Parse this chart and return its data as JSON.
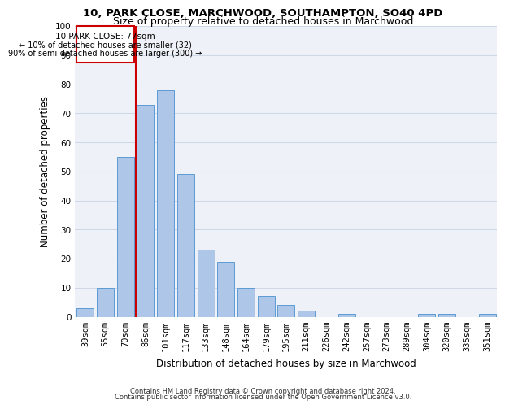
{
  "title_line1": "10, PARK CLOSE, MARCHWOOD, SOUTHAMPTON, SO40 4PD",
  "title_line2": "Size of property relative to detached houses in Marchwood",
  "xlabel": "Distribution of detached houses by size in Marchwood",
  "ylabel": "Number of detached properties",
  "footer_line1": "Contains HM Land Registry data © Crown copyright and database right 2024.",
  "footer_line2": "Contains public sector information licensed under the Open Government Licence v3.0.",
  "categories": [
    "39sqm",
    "55sqm",
    "70sqm",
    "86sqm",
    "101sqm",
    "117sqm",
    "133sqm",
    "148sqm",
    "164sqm",
    "179sqm",
    "195sqm",
    "211sqm",
    "226sqm",
    "242sqm",
    "257sqm",
    "273sqm",
    "289sqm",
    "304sqm",
    "320sqm",
    "335sqm",
    "351sqm"
  ],
  "values": [
    3,
    10,
    55,
    73,
    78,
    49,
    23,
    19,
    10,
    7,
    4,
    2,
    0,
    1,
    0,
    0,
    0,
    1,
    1,
    0,
    1
  ],
  "bar_color": "#aec6e8",
  "bar_edge_color": "#5b9bd5",
  "annotation_line1": "10 PARK CLOSE: 77sqm",
  "annotation_line2": "← 10% of detached houses are smaller (32)",
  "annotation_line3": "90% of semi-detached houses are larger (300) →",
  "vline_color": "#cc0000",
  "box_color": "#cc0000",
  "ylim": [
    0,
    100
  ],
  "yticks": [
    0,
    10,
    20,
    30,
    40,
    50,
    60,
    70,
    80,
    90,
    100
  ],
  "grid_color": "#d0d8e8",
  "background_color": "#eef2f8",
  "title1_fontsize": 9.5,
  "title2_fontsize": 9,
  "label_fontsize": 8.5,
  "tick_fontsize": 7.5,
  "footer_fontsize": 6.0
}
